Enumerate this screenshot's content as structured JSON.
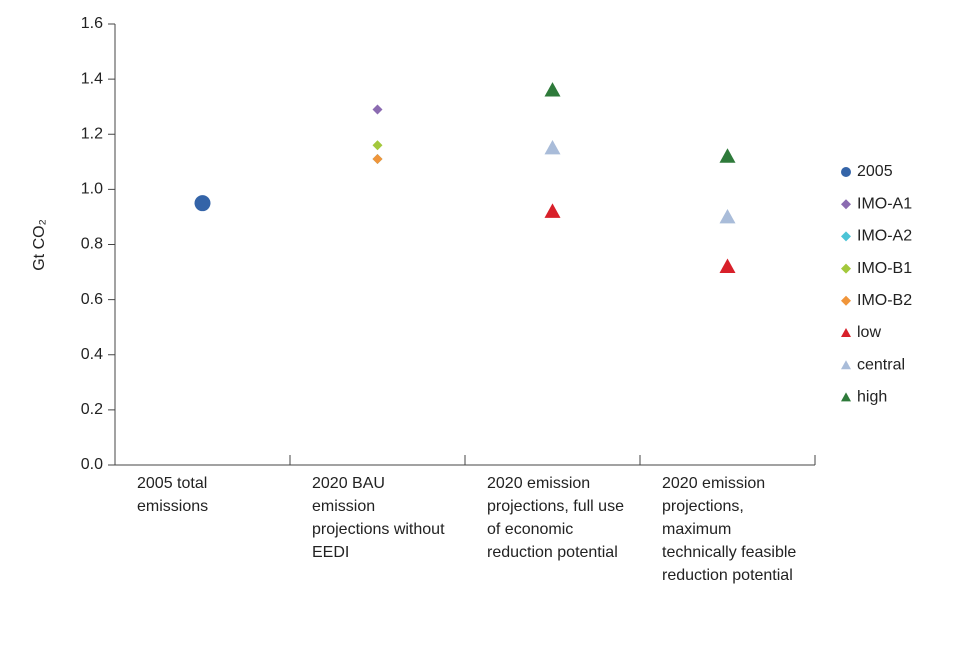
{
  "chart_data": {
    "type": "scatter",
    "y_label": "Gt CO₂",
    "categories": [
      "2005 total emissions",
      "2020 BAU emission projections without EEDI",
      "2020 emission projections, full use of economic reduction potential",
      "2020 emission projections, maximum technically feasible reduction potential"
    ],
    "series": [
      {
        "name": "2005",
        "color": "#3464a8",
        "marker": "circle",
        "values": [
          0.95,
          null,
          null,
          null
        ]
      },
      {
        "name": "IMO-A1",
        "color": "#8b6bb1",
        "marker": "diamond",
        "values": [
          null,
          1.29,
          null,
          null
        ]
      },
      {
        "name": "IMO-A2",
        "color": "#4cc4d6",
        "marker": "diamond",
        "values": [
          null,
          1.11,
          null,
          null
        ]
      },
      {
        "name": "IMO-B1",
        "color": "#a3c83c",
        "marker": "diamond",
        "values": [
          null,
          1.16,
          null,
          null
        ]
      },
      {
        "name": "IMO-B2",
        "color": "#f0953a",
        "marker": "diamond",
        "values": [
          null,
          1.11,
          null,
          null
        ]
      },
      {
        "name": "low",
        "color": "#d8202a",
        "marker": "triangle",
        "values": [
          null,
          null,
          0.92,
          0.72
        ]
      },
      {
        "name": "central",
        "color": "#a9bcd9",
        "marker": "triangle",
        "values": [
          null,
          null,
          1.15,
          0.9
        ]
      },
      {
        "name": "high",
        "color": "#2e7a3a",
        "marker": "triangle",
        "values": [
          null,
          null,
          1.36,
          1.12
        ]
      }
    ],
    "ylim": [
      0,
      1.6
    ],
    "yticks": [
      {
        "value": 0,
        "label": "0.0"
      },
      {
        "value": 0.2,
        "label": "0.2"
      },
      {
        "value": 0.4,
        "label": "0.4"
      },
      {
        "value": 0.6,
        "label": "0.6"
      },
      {
        "value": 0.8,
        "label": "0.8"
      },
      {
        "value": 1,
        "label": "1.0"
      },
      {
        "value": 1.2,
        "label": "1.2"
      },
      {
        "value": 1.4,
        "label": "1.4"
      },
      {
        "value": 1.6,
        "label": "1.6"
      }
    ],
    "legend": "right"
  }
}
